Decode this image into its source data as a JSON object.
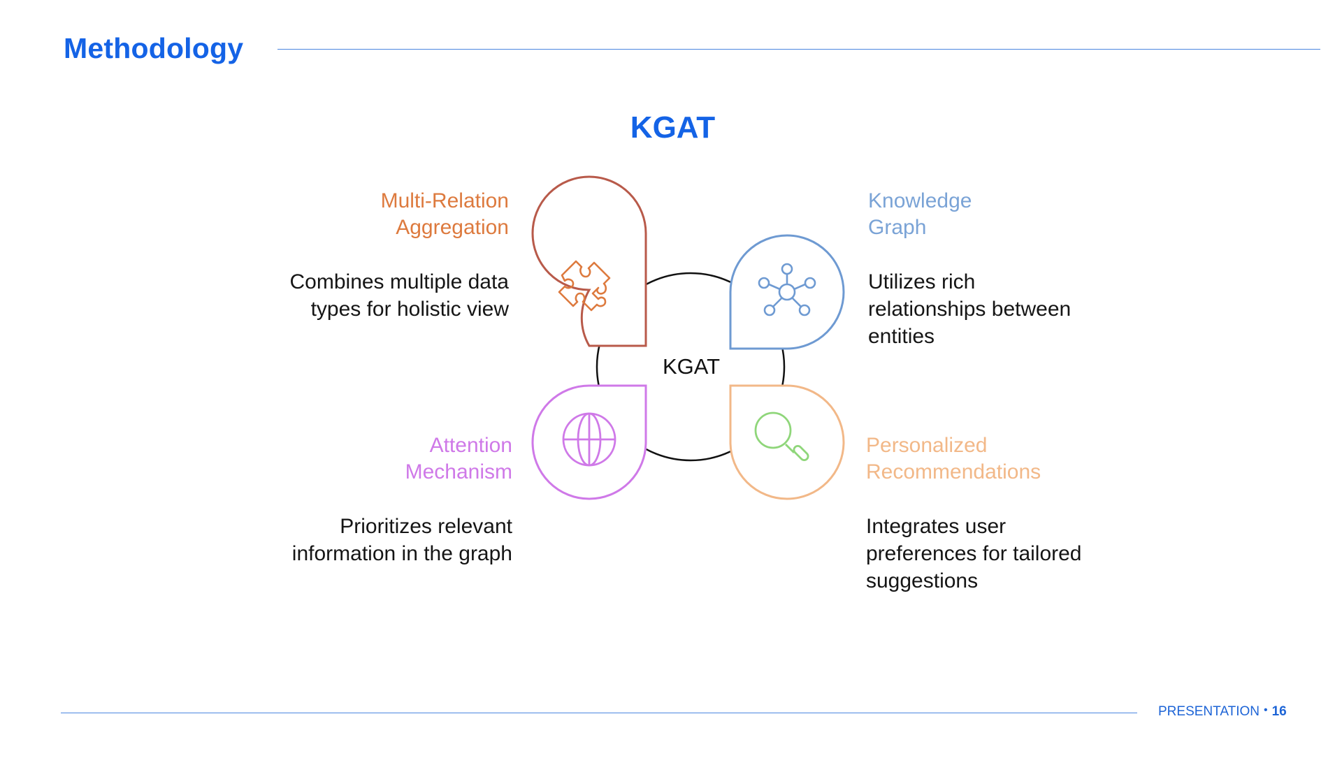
{
  "header": {
    "title": "Methodology"
  },
  "diagram": {
    "title": "KGAT",
    "center_label": "KGAT",
    "segments": [
      {
        "heading_line1": "Multi-Relation",
        "heading_line2": "Aggregation",
        "description_line1": "Combines multiple data",
        "description_line2": "types for holistic view",
        "icon": "puzzle-icon",
        "color": "#dd7a3e",
        "outline_color": "#b85a4a"
      },
      {
        "heading_line1": "Knowledge",
        "heading_line2": "Graph",
        "description_line1": "Utilizes rich",
        "description_line2": "relationships between",
        "description_line3": "entities",
        "icon": "network-icon",
        "color": "#7aa3d6",
        "outline_color": "#6e9ad2"
      },
      {
        "heading_line1": "Attention",
        "heading_line2": "Mechanism",
        "description_line1": "Prioritizes relevant",
        "description_line2": "information in the graph",
        "icon": "globe-icon",
        "color": "#cf79e8",
        "outline_color": "#cf79e8"
      },
      {
        "heading_line1": "Personalized",
        "heading_line2": "Recommendations",
        "description_line1": "Integrates user",
        "description_line2": "preferences for tailored",
        "description_line3": "suggestions",
        "icon": "search-icon",
        "color": "#f2b888",
        "outline_color": "#f2b888"
      }
    ]
  },
  "footer": {
    "label": "PRESENTATION",
    "separator": "•",
    "page_number": "16"
  }
}
